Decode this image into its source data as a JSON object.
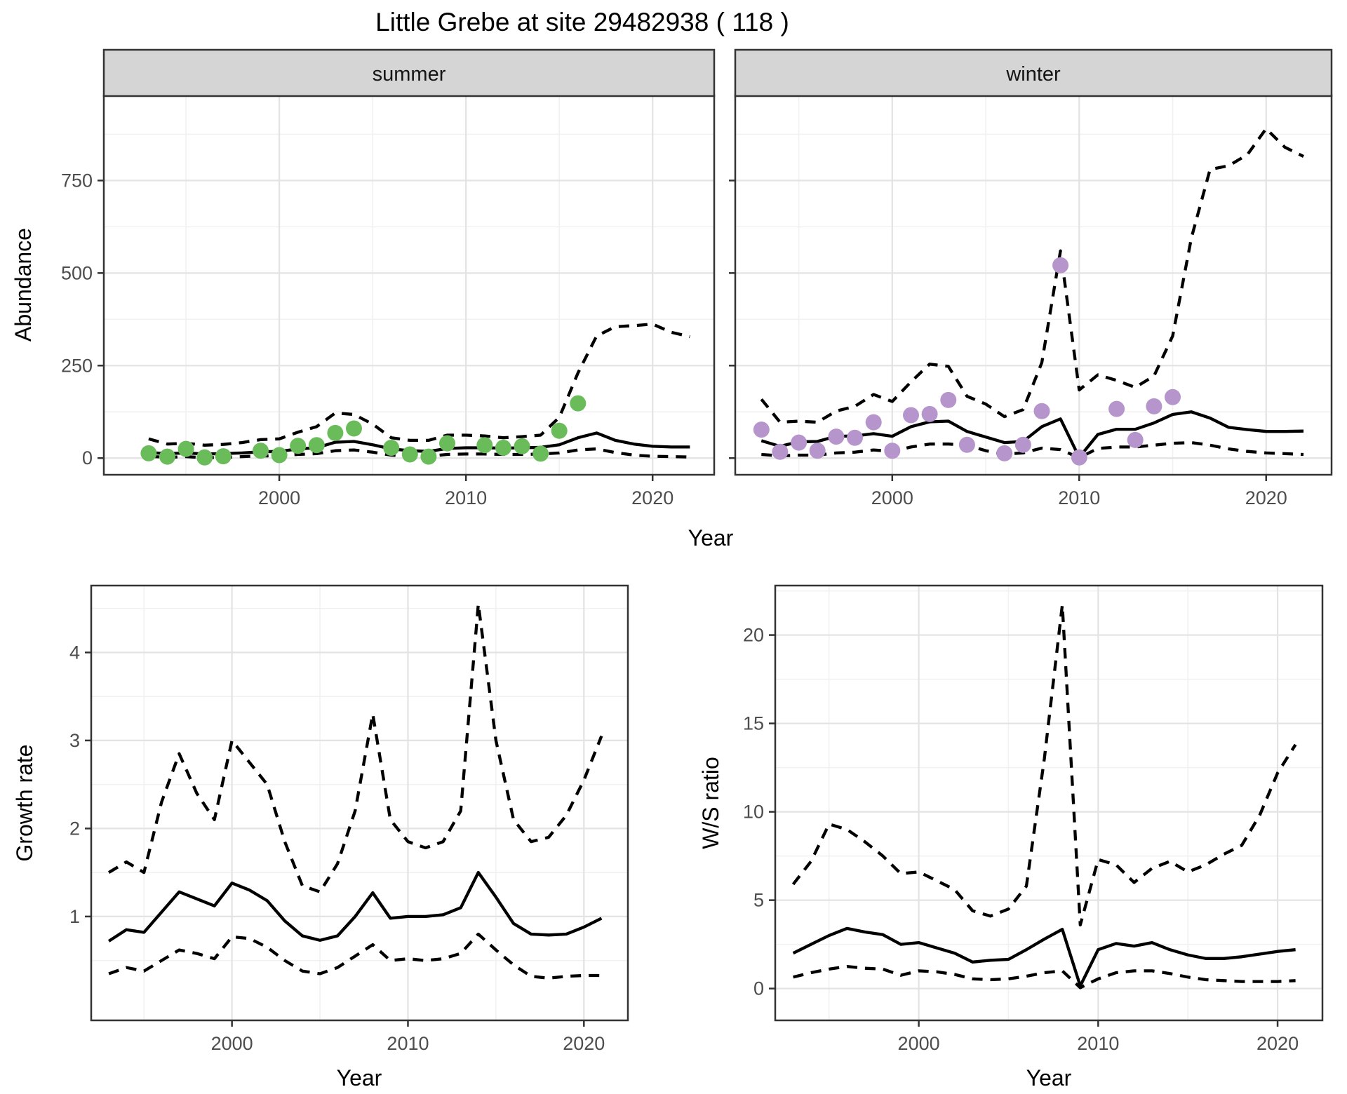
{
  "title": "Little Grebe at site 29482938 ( 118 )",
  "axes": {
    "abundance_label": "Abundance",
    "year_label": "Year",
    "growth_label": "Growth rate",
    "ws_label": "W/S ratio"
  },
  "facets": {
    "summer": "summer",
    "winter": "winter"
  },
  "colors": {
    "summer_point": "#6abc5a",
    "winter_point": "#b595cb",
    "line": "#000000",
    "strip_bg": "#d5d5d5",
    "panel_border": "#333333",
    "grid_major": "#e3e3e3",
    "grid_minor": "#f1f1f1",
    "tick_text": "#4d4d4d"
  },
  "chart_data": [
    {
      "id": "abundance-summer",
      "type": "line",
      "facet": "summer",
      "xlabel": "Year",
      "ylabel": "Abundance",
      "xlim": [
        1990.6,
        2023.3
      ],
      "ylim": [
        -45,
        980
      ],
      "xticks": [
        2000,
        2010,
        2020
      ],
      "xtick_labels": [
        "2000",
        "2010",
        "2020"
      ],
      "xminor": [
        1995,
        2005,
        2015
      ],
      "yticks": [
        0,
        250,
        500,
        750
      ],
      "ytick_labels": [
        "0",
        "250",
        "500",
        "750"
      ],
      "yminor": [
        125,
        375,
        625,
        875
      ],
      "show_y_labels": true,
      "point_color": "#6abc5a",
      "series": [
        {
          "name": "upper95",
          "style": "dashed",
          "years": [
            1993,
            1994,
            1995,
            1996,
            1997,
            1998,
            1999,
            2000,
            2001,
            2002,
            2003,
            2004,
            2005,
            2006,
            2007,
            2008,
            2009,
            2010,
            2011,
            2012,
            2013,
            2014,
            2015,
            2016,
            2017,
            2018,
            2019,
            2020,
            2021,
            2022
          ],
          "values": [
            52,
            38,
            40,
            35,
            37,
            42,
            50,
            52,
            70,
            85,
            122,
            118,
            92,
            55,
            48,
            48,
            62,
            62,
            60,
            55,
            58,
            62,
            110,
            230,
            330,
            355,
            358,
            362,
            340,
            328
          ]
        },
        {
          "name": "lower95",
          "style": "dashed",
          "years": [
            1993,
            1994,
            1995,
            1996,
            1997,
            1998,
            1999,
            2000,
            2001,
            2002,
            2003,
            2004,
            2005,
            2006,
            2007,
            2008,
            2009,
            2010,
            2011,
            2012,
            2013,
            2014,
            2015,
            2016,
            2017,
            2018,
            2019,
            2020,
            2021,
            2022
          ],
          "values": [
            5,
            2,
            4,
            1,
            2,
            4,
            6,
            6,
            10,
            12,
            20,
            22,
            16,
            8,
            5,
            5,
            10,
            11,
            11,
            10,
            10,
            11,
            14,
            22,
            25,
            15,
            8,
            5,
            4,
            3
          ]
        },
        {
          "name": "mean",
          "style": "solid",
          "years": [
            1993,
            1994,
            1995,
            1996,
            1997,
            1998,
            1999,
            2000,
            2001,
            2002,
            2003,
            2004,
            2005,
            2006,
            2007,
            2008,
            2009,
            2010,
            2011,
            2012,
            2013,
            2014,
            2015,
            2016,
            2017,
            2018,
            2019,
            2020,
            2021,
            2022
          ],
          "values": [
            15,
            12,
            14,
            11,
            12,
            14,
            17,
            18,
            25,
            28,
            43,
            45,
            36,
            25,
            20,
            18,
            26,
            28,
            28,
            27,
            28,
            29,
            36,
            55,
            68,
            48,
            38,
            32,
            30,
            30
          ]
        }
      ],
      "points": {
        "years": [
          1993,
          1994,
          1995,
          1996,
          1997,
          1999,
          2000,
          2001,
          2002,
          2003,
          2004,
          2006,
          2007,
          2008,
          2009,
          2011,
          2012,
          2013,
          2014,
          2015,
          2016
        ],
        "values": [
          13,
          4,
          25,
          2,
          5,
          20,
          8,
          33,
          35,
          68,
          80,
          28,
          10,
          4,
          40,
          35,
          28,
          32,
          12,
          74,
          148
        ]
      }
    },
    {
      "id": "abundance-winter",
      "type": "line",
      "facet": "winter",
      "xlabel": "Year",
      "ylabel": "Abundance",
      "xlim": [
        1991.6,
        2023.5
      ],
      "ylim": [
        -45,
        980
      ],
      "xticks": [
        2000,
        2010,
        2020
      ],
      "xtick_labels": [
        "2000",
        "2010",
        "2020"
      ],
      "xminor": [
        1995,
        2005,
        2015
      ],
      "yticks": [
        0,
        250,
        500,
        750
      ],
      "ytick_labels": [
        "0",
        "250",
        "500",
        "750"
      ],
      "yminor": [
        125,
        375,
        625,
        875
      ],
      "show_y_labels": false,
      "point_color": "#b595cb",
      "series": [
        {
          "name": "upper95",
          "style": "dashed",
          "years": [
            1993,
            1994,
            1995,
            1996,
            1997,
            1998,
            1999,
            2000,
            2001,
            2002,
            2003,
            2004,
            2005,
            2006,
            2007,
            2008,
            2009,
            2010,
            2011,
            2012,
            2013,
            2014,
            2015,
            2016,
            2017,
            2018,
            2019,
            2020,
            2021,
            2022
          ],
          "values": [
            159,
            97,
            100,
            97,
            127,
            140,
            172,
            153,
            206,
            254,
            248,
            167,
            146,
            112,
            131,
            258,
            560,
            184,
            225,
            210,
            191,
            222,
            330,
            595,
            780,
            790,
            820,
            890,
            840,
            815
          ]
        },
        {
          "name": "lower95",
          "style": "dashed",
          "years": [
            1993,
            1994,
            1995,
            1996,
            1997,
            1998,
            1999,
            2000,
            2001,
            2002,
            2003,
            2004,
            2005,
            2006,
            2007,
            2008,
            2009,
            2010,
            2011,
            2012,
            2013,
            2014,
            2015,
            2016,
            2017,
            2018,
            2019,
            2020,
            2021,
            2022
          ],
          "values": [
            10,
            6,
            8,
            8,
            14,
            16,
            22,
            18,
            30,
            38,
            38,
            35,
            20,
            11,
            14,
            27,
            23,
            1,
            26,
            30,
            30,
            35,
            40,
            42,
            35,
            25,
            18,
            14,
            12,
            10
          ]
        },
        {
          "name": "mean",
          "style": "solid",
          "years": [
            1993,
            1994,
            1995,
            1996,
            1997,
            1998,
            1999,
            2000,
            2001,
            2002,
            2003,
            2004,
            2005,
            2006,
            2007,
            2008,
            2009,
            2010,
            2011,
            2012,
            2013,
            2014,
            2015,
            2016,
            2017,
            2018,
            2019,
            2020,
            2021,
            2022
          ],
          "values": [
            47,
            32,
            44,
            45,
            59,
            60,
            66,
            59,
            85,
            98,
            100,
            72,
            57,
            42,
            45,
            85,
            106,
            2,
            64,
            78,
            78,
            95,
            118,
            125,
            108,
            83,
            77,
            72,
            72,
            73
          ]
        }
      ],
      "points": {
        "years": [
          1993,
          1994,
          1995,
          1996,
          1997,
          1998,
          1999,
          2000,
          2001,
          2002,
          2003,
          2004,
          2006,
          2007,
          2008,
          2009,
          2010,
          2012,
          2013,
          2014,
          2015
        ],
        "values": [
          77,
          17,
          42,
          20,
          58,
          55,
          97,
          20,
          116,
          119,
          157,
          36,
          13,
          36,
          127,
          521,
          2,
          133,
          49,
          140,
          165
        ]
      }
    },
    {
      "id": "growth-rate",
      "type": "line",
      "facet": null,
      "xlabel": "Year",
      "ylabel": "Growth rate",
      "xlim": [
        1992,
        2022.5
      ],
      "ylim": [
        -0.18,
        4.76
      ],
      "xticks": [
        2000,
        2010,
        2020
      ],
      "xtick_labels": [
        "2000",
        "2010",
        "2020"
      ],
      "xminor": [
        1995,
        2005,
        2015
      ],
      "yticks": [
        1,
        2,
        3,
        4
      ],
      "ytick_labels": [
        "1",
        "2",
        "3",
        "4"
      ],
      "yminor": [
        0.5,
        1.5,
        2.5,
        3.5,
        4.5
      ],
      "show_y_labels": true,
      "point_color": null,
      "series": [
        {
          "name": "upper95",
          "style": "dashed",
          "years": [
            1993,
            1994,
            1995,
            1996,
            1997,
            1998,
            1999,
            2000,
            2001,
            2002,
            2003,
            2004,
            2005,
            2006,
            2007,
            2008,
            2009,
            2010,
            2011,
            2012,
            2013,
            2014,
            2015,
            2016,
            2017,
            2018,
            2019,
            2020,
            2021
          ],
          "values": [
            1.5,
            1.62,
            1.5,
            2.3,
            2.85,
            2.4,
            2.1,
            3.0,
            2.75,
            2.5,
            1.85,
            1.35,
            1.28,
            1.6,
            2.2,
            3.3,
            2.1,
            1.85,
            1.78,
            1.85,
            2.2,
            4.55,
            3.0,
            2.1,
            1.85,
            1.9,
            2.15,
            2.55,
            3.05
          ]
        },
        {
          "name": "lower95",
          "style": "dashed",
          "years": [
            1993,
            1994,
            1995,
            1996,
            1997,
            1998,
            1999,
            2000,
            2001,
            2002,
            2003,
            2004,
            2005,
            2006,
            2007,
            2008,
            2009,
            2010,
            2011,
            2012,
            2013,
            2014,
            2015,
            2016,
            2017,
            2018,
            2019,
            2020,
            2021
          ],
          "values": [
            0.35,
            0.42,
            0.38,
            0.5,
            0.62,
            0.58,
            0.52,
            0.77,
            0.75,
            0.65,
            0.5,
            0.38,
            0.35,
            0.42,
            0.55,
            0.68,
            0.5,
            0.52,
            0.5,
            0.52,
            0.58,
            0.8,
            0.62,
            0.45,
            0.32,
            0.3,
            0.32,
            0.33,
            0.33
          ]
        },
        {
          "name": "mean",
          "style": "solid",
          "years": [
            1993,
            1994,
            1995,
            1996,
            1997,
            1998,
            1999,
            2000,
            2001,
            2002,
            2003,
            2004,
            2005,
            2006,
            2007,
            2008,
            2009,
            2010,
            2011,
            2012,
            2013,
            2014,
            2015,
            2016,
            2017,
            2018,
            2019,
            2020,
            2021
          ],
          "values": [
            0.72,
            0.85,
            0.82,
            1.05,
            1.28,
            1.2,
            1.12,
            1.38,
            1.3,
            1.18,
            0.95,
            0.78,
            0.73,
            0.78,
            1.0,
            1.27,
            0.98,
            1.0,
            1.0,
            1.02,
            1.1,
            1.5,
            1.22,
            0.92,
            0.8,
            0.79,
            0.8,
            0.88,
            0.98
          ]
        }
      ],
      "points": {
        "years": [],
        "values": []
      }
    },
    {
      "id": "ws-ratio",
      "type": "line",
      "facet": null,
      "xlabel": "Year",
      "ylabel": "W/S ratio",
      "xlim": [
        1992,
        2022.5
      ],
      "ylim": [
        -1.8,
        22.8
      ],
      "xticks": [
        2000,
        2010,
        2020
      ],
      "xtick_labels": [
        "2000",
        "2010",
        "2020"
      ],
      "xminor": [
        1995,
        2005,
        2015
      ],
      "yticks": [
        0,
        5,
        10,
        15,
        20
      ],
      "ytick_labels": [
        "0",
        "5",
        "10",
        "15",
        "20"
      ],
      "yminor": [
        2.5,
        7.5,
        12.5,
        17.5,
        22.5
      ],
      "show_y_labels": true,
      "point_color": null,
      "series": [
        {
          "name": "upper95",
          "style": "dashed",
          "years": [
            1993,
            1994,
            1995,
            1996,
            1997,
            1998,
            1999,
            2000,
            2001,
            2002,
            2003,
            2004,
            2005,
            2006,
            2007,
            2008,
            2009,
            2010,
            2011,
            2012,
            2013,
            2014,
            2015,
            2016,
            2017,
            2018,
            2019,
            2020,
            2021
          ],
          "values": [
            5.9,
            7.2,
            9.3,
            9.0,
            8.3,
            7.5,
            6.5,
            6.6,
            6.1,
            5.6,
            4.4,
            4.1,
            4.5,
            5.8,
            13.0,
            21.7,
            3.6,
            7.3,
            7.0,
            6.0,
            6.8,
            7.2,
            6.6,
            7.0,
            7.6,
            8.1,
            9.8,
            12.2,
            13.8
          ]
        },
        {
          "name": "lower95",
          "style": "dashed",
          "years": [
            1993,
            1994,
            1995,
            1996,
            1997,
            1998,
            1999,
            2000,
            2001,
            2002,
            2003,
            2004,
            2005,
            2006,
            2007,
            2008,
            2009,
            2010,
            2011,
            2012,
            2013,
            2014,
            2015,
            2016,
            2017,
            2018,
            2019,
            2020,
            2021
          ],
          "values": [
            0.65,
            0.9,
            1.1,
            1.25,
            1.15,
            1.1,
            0.75,
            1.0,
            0.95,
            0.8,
            0.55,
            0.5,
            0.55,
            0.7,
            0.9,
            1.0,
            0.05,
            0.55,
            0.9,
            1.0,
            1.0,
            0.85,
            0.65,
            0.5,
            0.45,
            0.4,
            0.4,
            0.4,
            0.45
          ]
        },
        {
          "name": "mean",
          "style": "solid",
          "years": [
            1993,
            1994,
            1995,
            1996,
            1997,
            1998,
            1999,
            2000,
            2001,
            2002,
            2003,
            2004,
            2005,
            2006,
            2007,
            2008,
            2009,
            2010,
            2011,
            2012,
            2013,
            2014,
            2015,
            2016,
            2017,
            2018,
            2019,
            2020,
            2021
          ],
          "values": [
            2.0,
            2.5,
            3.0,
            3.4,
            3.2,
            3.05,
            2.5,
            2.6,
            2.3,
            2.0,
            1.5,
            1.6,
            1.65,
            2.2,
            2.8,
            3.35,
            0.15,
            2.2,
            2.55,
            2.4,
            2.6,
            2.2,
            1.9,
            1.7,
            1.7,
            1.8,
            1.95,
            2.1,
            2.2
          ]
        }
      ],
      "points": {
        "years": [],
        "values": []
      }
    }
  ]
}
